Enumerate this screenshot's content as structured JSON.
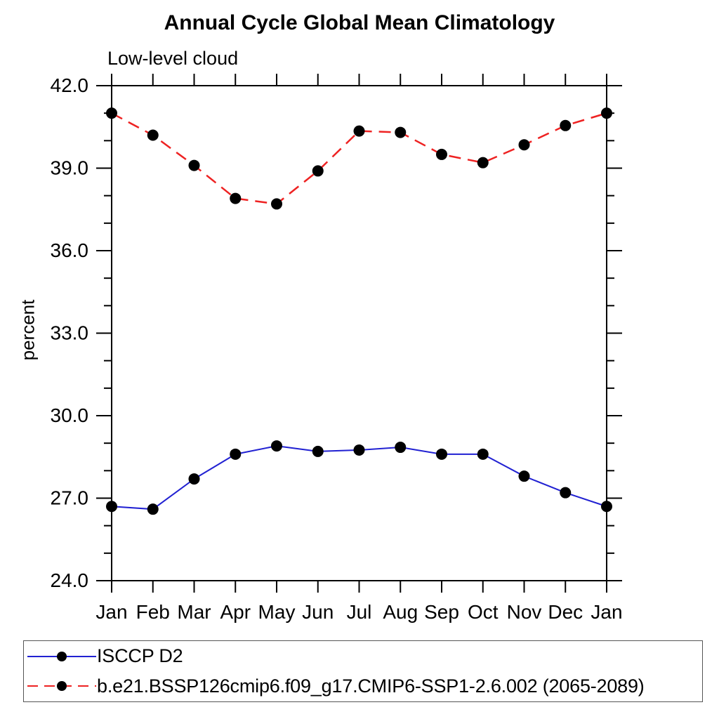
{
  "chart_data": {
    "type": "line",
    "title": "Annual Cycle Global Mean Climatology",
    "subtitle": "Low-level cloud",
    "xlabel": "",
    "ylabel": "percent",
    "categories": [
      "Jan",
      "Feb",
      "Mar",
      "Apr",
      "May",
      "Jun",
      "Jul",
      "Aug",
      "Sep",
      "Oct",
      "Nov",
      "Dec",
      "Jan"
    ],
    "ylim": [
      24.0,
      42.0
    ],
    "ytick_major_interval": 3.0,
    "ytick_minor_interval": 1.0,
    "ytick_labels": [
      "24.0",
      "27.0",
      "30.0",
      "33.0",
      "36.0",
      "39.0",
      "42.0"
    ],
    "grid": false,
    "legend_position": "bottom",
    "axis_color": "#000000",
    "legend_border_color": "#555555",
    "series": [
      {
        "name": "ISCCP D2",
        "color": "#2121d2",
        "line_style": "solid",
        "marker": "circle",
        "marker_color": "#000000",
        "values": [
          26.7,
          26.6,
          27.7,
          28.6,
          28.9,
          28.7,
          28.75,
          28.85,
          28.6,
          28.6,
          27.8,
          27.2,
          26.7
        ]
      },
      {
        "name": "b.e21.BSSP126cmip6.f09_g17.CMIP6-SSP1-2.6.002 (2065-2089)",
        "color": "#ee2222",
        "line_style": "dashed",
        "marker": "circle",
        "marker_color": "#000000",
        "values": [
          41.0,
          40.2,
          39.1,
          37.9,
          37.7,
          38.9,
          40.35,
          40.3,
          39.5,
          39.2,
          39.85,
          40.55,
          41.0
        ]
      }
    ]
  }
}
